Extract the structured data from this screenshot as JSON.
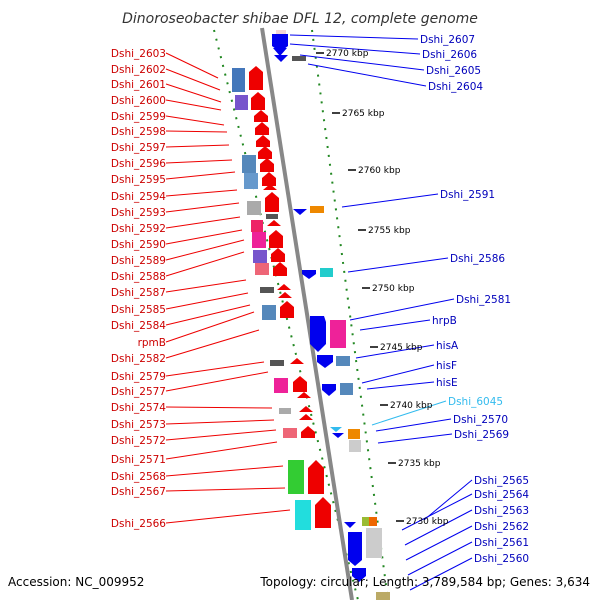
{
  "title": "Dinoroseobacter shibae DFL 12, complete genome",
  "accession": "Accession: NC_009952",
  "topology": "Topology: circular; Length: 3,789,584 bp; Genes: 3,634",
  "kbp_labels": [
    "2770 kbp",
    "2765 kbp",
    "2760 kbp",
    "2755 kbp",
    "2750 kbp",
    "2745 kbp",
    "2740 kbp",
    "2735 kbp",
    "2730 kbp"
  ],
  "left_genes": [
    "Dshi_2603",
    "Dshi_2602",
    "Dshi_2601",
    "Dshi_2600",
    "Dshi_2599",
    "Dshi_2598",
    "Dshi_2597",
    "Dshi_2596",
    "Dshi_2595",
    "Dshi_2594",
    "Dshi_2593",
    "Dshi_2592",
    "Dshi_2590",
    "Dshi_2589",
    "Dshi_2588",
    "Dshi_2587",
    "Dshi_2585",
    "Dshi_2584",
    "rpmB",
    "Dshi_2582",
    "Dshi_2579",
    "Dshi_2577",
    "Dshi_2574",
    "Dshi_2573",
    "Dshi_2572",
    "Dshi_2571",
    "Dshi_2568",
    "Dshi_2567",
    "Dshi_2566"
  ],
  "right_genes": [
    "Dshi_2607",
    "Dshi_2606",
    "Dshi_2605",
    "Dshi_2604",
    "Dshi_2591",
    "Dshi_2586",
    "Dshi_2581",
    "hrpB",
    "hisA",
    "hisF",
    "hisE",
    "Dshi_6045",
    "Dshi_2570",
    "Dshi_2569",
    "Dshi_2565",
    "Dshi_2564",
    "Dshi_2563",
    "Dshi_2562",
    "Dshi_2561",
    "Dshi_2560"
  ],
  "colors": {
    "forward": "#ee0000",
    "reverse": "#0000ee",
    "rna": "#33bbee",
    "backbone": "#888888",
    "ticks": "#228822"
  }
}
